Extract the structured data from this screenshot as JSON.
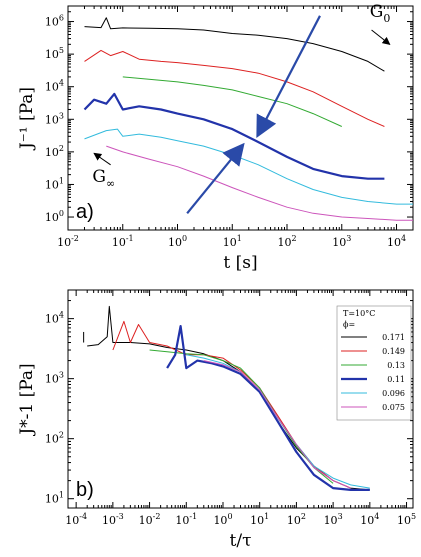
{
  "chart_data": [
    {
      "panel_label": "a)",
      "type": "line",
      "xlabel": "t [s]",
      "ylabel": "J⁻¹ [Pa]",
      "xscale": "log",
      "yscale": "log",
      "xlim": [
        0.01,
        20000
      ],
      "ylim": [
        0.4,
        3000000
      ],
      "x_ticks": [
        "10-2",
        "10-1",
        "100",
        "101",
        "102",
        "103",
        "104"
      ],
      "y_ticks": [
        "100",
        "101",
        "102",
        "103",
        "104",
        "105",
        "106"
      ],
      "annotations": [
        {
          "text": "G0",
          "x": 5000,
          "y": 1400000
        },
        {
          "text": "G∞",
          "x": 0.045,
          "y": 12
        }
      ],
      "series": [
        {
          "phi": "0.171",
          "color": "#000000",
          "width": 1,
          "x": [
            0.02,
            0.04,
            0.05,
            0.06,
            0.1,
            0.3,
            1,
            3,
            10,
            30,
            100,
            300,
            1000,
            3000,
            6000
          ],
          "y": [
            700000,
            650000,
            1300000,
            600000,
            640000,
            620000,
            600000,
            550000,
            430000,
            380000,
            300000,
            210000,
            120000,
            60000,
            30000
          ]
        },
        {
          "phi": "0.149",
          "color": "#dd2222",
          "width": 1,
          "x": [
            0.02,
            0.04,
            0.06,
            0.1,
            0.2,
            0.5,
            1,
            3,
            10,
            30,
            100,
            300,
            1000,
            3000,
            6000
          ],
          "y": [
            60000,
            130000,
            90000,
            120000,
            70000,
            60000,
            55000,
            45000,
            36000,
            26000,
            14000,
            7000,
            2500,
            1000,
            600
          ]
        },
        {
          "phi": "0.13",
          "color": "#33aa33",
          "width": 1,
          "x": [
            0.1,
            0.3,
            1,
            3,
            10,
            30,
            100,
            300,
            1000
          ],
          "y": [
            20000,
            17000,
            14000,
            11000,
            8000,
            5000,
            3000,
            1500,
            600
          ]
        },
        {
          "phi": "0.11",
          "color": "#2233aa",
          "width": 2.2,
          "x": [
            0.02,
            0.03,
            0.05,
            0.07,
            0.1,
            0.2,
            0.5,
            1,
            3,
            10,
            30,
            100,
            300,
            1000,
            3000,
            6000
          ],
          "y": [
            2000,
            4000,
            3000,
            6000,
            2000,
            2500,
            2000,
            1500,
            1000,
            500,
            200,
            70,
            30,
            18,
            15,
            15
          ]
        },
        {
          "phi": "0.096",
          "color": "#33bbdd",
          "width": 1,
          "x": [
            0.02,
            0.05,
            0.08,
            0.1,
            0.2,
            0.5,
            1,
            3,
            10,
            30,
            100,
            300,
            1000,
            3000,
            10000,
            20000
          ],
          "y": [
            250,
            450,
            500,
            300,
            350,
            280,
            220,
            150,
            80,
            40,
            15,
            7,
            4,
            3,
            2.5,
            2.5
          ]
        },
        {
          "phi": "0.075",
          "color": "#cc55bb",
          "width": 1,
          "x": [
            0.05,
            0.1,
            0.3,
            1,
            3,
            10,
            30,
            100,
            300,
            1000,
            3000,
            10000,
            20000
          ],
          "y": [
            150,
            100,
            60,
            35,
            18,
            8,
            4,
            2,
            1.3,
            1,
            0.9,
            0.8,
            0.8
          ]
        }
      ]
    },
    {
      "panel_label": "b)",
      "type": "line",
      "xlabel": "t/τ",
      "ylabel": "J*-1 [Pa]",
      "xscale": "log",
      "yscale": "log",
      "xlim": [
        6e-05,
        150000
      ],
      "ylim": [
        7,
        30000
      ],
      "x_ticks": [
        "10-4",
        "10-3",
        "10-2",
        "10-1",
        "100",
        "101",
        "102",
        "103",
        "104",
        "105"
      ],
      "y_ticks": [
        "101",
        "102",
        "103",
        "104"
      ],
      "legend": {
        "position": "right",
        "title": "T=10°C",
        "subtitle": "ϕ=",
        "entries": [
          "0.171",
          "0.149",
          "0.13",
          "0.11",
          "0.096",
          "0.075"
        ]
      },
      "series": [
        {
          "phi": "0.171",
          "color": "#000000",
          "width": 1,
          "x": [
            0.0002,
            0.0004,
            0.0007,
            0.0008,
            0.001,
            0.003,
            0.01,
            0.03,
            0.1,
            0.3,
            1,
            3,
            10,
            30,
            100,
            300,
            1000,
            3000,
            10000
          ],
          "y": [
            3500,
            3700,
            5000,
            16000,
            4000,
            4000,
            3800,
            3300,
            3000,
            2600,
            2000,
            1300,
            600,
            200,
            70,
            35,
            20,
            15,
            14
          ]
        },
        {
          "phi": "0.149",
          "color": "#dd2222",
          "width": 1,
          "x": [
            0.001,
            0.002,
            0.003,
            0.005,
            0.01,
            0.03,
            0.1,
            0.3,
            1,
            3,
            10,
            30,
            100,
            300,
            1000,
            3000
          ],
          "y": [
            3000,
            9000,
            4000,
            8000,
            4000,
            3500,
            2500,
            2500,
            2200,
            1400,
            700,
            250,
            80,
            35,
            20,
            15
          ]
        },
        {
          "phi": "0.13",
          "color": "#33aa33",
          "width": 1,
          "x": [
            0.01,
            0.03,
            0.1,
            0.3,
            1,
            3,
            10,
            30,
            100,
            300,
            1000
          ],
          "y": [
            3000,
            2800,
            2600,
            2500,
            2000,
            1500,
            700,
            230,
            75,
            33,
            18
          ]
        },
        {
          "phi": "0.11",
          "color": "#2233aa",
          "width": 2.2,
          "x": [
            0.03,
            0.05,
            0.07,
            0.1,
            0.2,
            0.5,
            1,
            3,
            10,
            30,
            100,
            300,
            1000,
            3000,
            10000
          ],
          "y": [
            1500,
            2500,
            7500,
            1500,
            2000,
            1800,
            1600,
            1200,
            600,
            200,
            60,
            25,
            15,
            14,
            14
          ]
        },
        {
          "phi": "0.096",
          "color": "#33bbdd",
          "width": 1,
          "x": [
            0.1,
            0.3,
            1,
            3,
            10,
            30,
            100,
            300,
            1000,
            3000,
            10000
          ],
          "y": [
            2500,
            2200,
            1800,
            1300,
            650,
            230,
            80,
            35,
            22,
            17,
            15
          ]
        },
        {
          "phi": "0.075",
          "color": "#cc55bb",
          "width": 1,
          "x": [
            0.3,
            1,
            3,
            10,
            30,
            100,
            300,
            1000,
            3000
          ],
          "y": [
            2000,
            1700,
            1300,
            650,
            230,
            80,
            33,
            20,
            15
          ]
        }
      ]
    }
  ]
}
